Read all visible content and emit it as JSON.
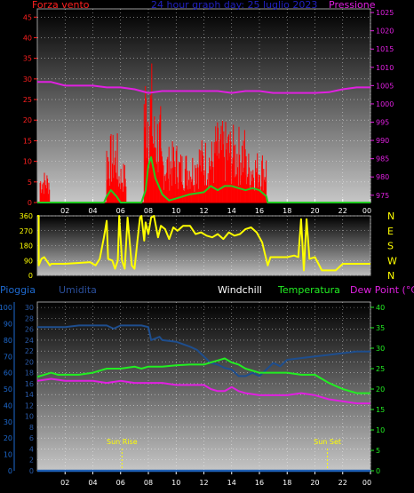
{
  "header": {
    "wind_label": "Forza vento",
    "center_label": "24 hour graph day: 25 luglio 2023",
    "pressure_label": "Pressione"
  },
  "bottom_header": {
    "rain": "Pioggia",
    "humidity": "Umidita",
    "windchill": "Windchill",
    "temperature": "Temperatura",
    "dewpoint": "Dew Point (°C)"
  },
  "sun": {
    "rise": "Sun Rise",
    "set": "Sun Set",
    "rise_hour": 6.1,
    "set_hour": 20.9
  },
  "x_hours": [
    0,
    24
  ],
  "x_tick_labels": [
    "02",
    "04",
    "06",
    "08",
    "10",
    "12",
    "14",
    "16",
    "18",
    "20",
    "22",
    "00"
  ],
  "colors": {
    "wind": "#ff0000",
    "gust": "#ff0000",
    "speed": "#22cc22",
    "pressure": "#e020e0",
    "direction": "#ffff00",
    "humidity": "#1e4e8e",
    "temperature": "#22ee22",
    "dewpoint": "#e020e0",
    "rain": "#1e5fb4",
    "windchill": "#ffffff",
    "grid": "#ffffff"
  },
  "chart_data": [
    {
      "type": "bar",
      "name": "wind-pressure",
      "y_left_ticks": [
        0,
        5,
        10,
        15,
        20,
        25,
        30,
        35,
        40,
        45
      ],
      "y_right_ticks": [
        975,
        980,
        985,
        990,
        995,
        1000,
        1005,
        1010,
        1015,
        1020,
        1025
      ],
      "ylim_left": [
        0,
        47
      ],
      "ylim_right": [
        973,
        1026
      ],
      "gust_bursts": [
        {
          "x": [
            0.2,
            0.9
          ],
          "ymax": 8
        },
        {
          "x": [
            5.0,
            5.8
          ],
          "ymax": 17
        },
        {
          "x": [
            5.8,
            6.4
          ],
          "ymax": 10
        },
        {
          "x": [
            7.7,
            8.3
          ],
          "ymax": 35
        },
        {
          "x": [
            8.3,
            8.9
          ],
          "ymax": 24
        },
        {
          "x": [
            8.9,
            9.6
          ],
          "ymax": 14
        },
        {
          "x": [
            9.6,
            10.2
          ],
          "ymax": 15
        },
        {
          "x": [
            10.2,
            11.4
          ],
          "ymax": 13
        },
        {
          "x": [
            11.4,
            12.8
          ],
          "ymax": 16
        },
        {
          "x": [
            12.8,
            13.9
          ],
          "ymax": 20
        },
        {
          "x": [
            13.9,
            15.0
          ],
          "ymax": 19
        },
        {
          "x": [
            15.0,
            16.5
          ],
          "ymax": 13
        }
      ],
      "speed": {
        "x": [
          0,
          4.8,
          5.0,
          5.3,
          5.7,
          6.0,
          7.5,
          7.8,
          8.0,
          8.2,
          8.5,
          9.0,
          9.5,
          10.0,
          11.0,
          12.0,
          12.5,
          13.0,
          13.5,
          14.0,
          14.5,
          15.0,
          15.5,
          16.0,
          16.5,
          16.6,
          24
        ],
        "y": [
          0,
          0,
          1.5,
          3,
          1.5,
          0,
          0,
          3,
          9,
          11,
          6,
          2,
          0.5,
          1,
          2,
          2.5,
          4,
          3,
          4,
          4,
          3.5,
          3,
          3.5,
          3,
          1.5,
          0,
          0
        ]
      },
      "pressure": {
        "x": [
          0,
          1,
          2,
          3,
          4,
          5,
          6,
          7,
          8,
          9,
          10,
          11,
          12,
          13,
          14,
          15,
          16,
          17,
          18,
          19,
          20,
          21,
          22,
          23,
          24
        ],
        "y": [
          1006,
          1006,
          1005,
          1005,
          1005,
          1004.5,
          1004.5,
          1004,
          1003,
          1003.5,
          1003.5,
          1003.5,
          1003.5,
          1003.5,
          1003,
          1003.5,
          1003.5,
          1003,
          1003,
          1003,
          1003,
          1003.2,
          1004,
          1004.5,
          1004.5
        ]
      }
    },
    {
      "type": "line",
      "name": "wind-direction",
      "y_left_ticks": [
        0,
        90,
        180,
        270,
        360
      ],
      "y_right_labels": [
        "N",
        "W",
        "S",
        "E",
        "N"
      ],
      "ylim": [
        0,
        360
      ],
      "direction": {
        "x": [
          0,
          0.1,
          0.1,
          0.3,
          0.5,
          0.9,
          1.0,
          2.0,
          3.0,
          3.8,
          4.0,
          4.2,
          4.5,
          4.8,
          5.0,
          5.1,
          5.4,
          5.6,
          5.8,
          5.9,
          6.1,
          6.3,
          6.5,
          6.8,
          7.0,
          7.2,
          7.4,
          7.5,
          7.7,
          7.8,
          8.0,
          8.2,
          8.4,
          8.7,
          8.9,
          9.2,
          9.5,
          9.8,
          10.1,
          10.5,
          11.0,
          11.4,
          11.8,
          12.2,
          12.6,
          13.0,
          13.4,
          13.8,
          14.2,
          14.6,
          15.0,
          15.4,
          15.8,
          16.2,
          16.4,
          16.6,
          16.8,
          17.0,
          18.0,
          18.5,
          18.8,
          19.0,
          19.2,
          19.4,
          19.6,
          20.0,
          20.5,
          21.0,
          21.5,
          22.0,
          22.5,
          23.0,
          24
        ],
        "y": [
          360,
          360,
          60,
          100,
          110,
          60,
          70,
          70,
          75,
          80,
          70,
          60,
          100,
          230,
          330,
          100,
          90,
          40,
          90,
          360,
          90,
          40,
          350,
          60,
          40,
          200,
          350,
          360,
          210,
          320,
          250,
          350,
          360,
          230,
          300,
          280,
          220,
          290,
          270,
          300,
          300,
          250,
          260,
          240,
          230,
          250,
          220,
          260,
          240,
          250,
          280,
          290,
          260,
          200,
          130,
          60,
          110,
          110,
          110,
          120,
          110,
          340,
          30,
          340,
          100,
          110,
          30,
          30,
          30,
          70,
          70,
          70,
          70
        ]
      }
    },
    {
      "type": "line",
      "name": "temperature-humidity",
      "y_left_ticks": [
        0,
        2,
        4,
        6,
        8,
        10,
        12,
        14,
        16,
        18,
        20,
        22,
        24,
        26,
        28,
        30
      ],
      "y_rain_ticks": [
        0,
        10,
        20,
        30,
        40,
        50,
        60,
        70,
        80,
        90,
        100
      ],
      "y_right_ticks": [
        0,
        5,
        10,
        15,
        20,
        25,
        30,
        35,
        40
      ],
      "ylim_left": [
        0,
        31
      ],
      "ylim_right": [
        0,
        41.3
      ],
      "humidity": {
        "x": [
          0,
          1,
          2,
          3,
          4,
          5,
          5.5,
          6,
          7,
          7.5,
          8,
          8.2,
          8.8,
          9,
          10,
          11,
          11.5,
          12,
          12.5,
          13,
          13.5,
          14,
          14.5,
          15,
          15.5,
          16,
          16.5,
          17,
          17.5,
          18,
          19,
          20,
          21,
          22,
          23,
          24
        ],
        "y": [
          88,
          88,
          88,
          89,
          89,
          89,
          87,
          89,
          89,
          89,
          88,
          80,
          82,
          80,
          79,
          76,
          74,
          70,
          66,
          65,
          63,
          62,
          58,
          58,
          60,
          58,
          62,
          66,
          64,
          68,
          69,
          70,
          71,
          72,
          73,
          73
        ]
      },
      "temperature": {
        "x": [
          0,
          0.5,
          1,
          1.5,
          2,
          3,
          4,
          5,
          6,
          7,
          7.5,
          8,
          9,
          10,
          11,
          12,
          12.5,
          13,
          13.5,
          14,
          14.5,
          15,
          16,
          17,
          18,
          19,
          20,
          20.5,
          21,
          22,
          23,
          24
        ],
        "y": [
          23,
          23.5,
          24,
          23.5,
          23.5,
          23.5,
          24,
          25,
          25,
          25.5,
          25,
          25.5,
          25.5,
          25.8,
          26,
          26,
          26.5,
          27,
          27.5,
          26.5,
          26,
          25,
          24,
          24,
          24,
          23.5,
          23.5,
          22.5,
          21.5,
          20,
          19,
          19
        ]
      },
      "dewpoint": {
        "x": [
          0,
          1,
          2,
          3,
          4,
          5,
          6,
          7,
          8,
          9,
          10,
          11,
          12,
          12.5,
          13,
          13.5,
          14,
          14.5,
          15,
          16,
          17,
          18,
          19,
          20,
          21,
          22,
          23,
          24
        ],
        "y": [
          22,
          22.5,
          22,
          22,
          22,
          21.5,
          22,
          21.5,
          21.5,
          21.5,
          21,
          21,
          21,
          20,
          19.5,
          19.5,
          20.5,
          19.5,
          19,
          18.5,
          18.5,
          18.5,
          19,
          18.5,
          17.5,
          17,
          16.5,
          16.5
        ]
      },
      "rain": {
        "x": [
          0,
          24
        ],
        "y": [
          0,
          0
        ]
      }
    }
  ]
}
